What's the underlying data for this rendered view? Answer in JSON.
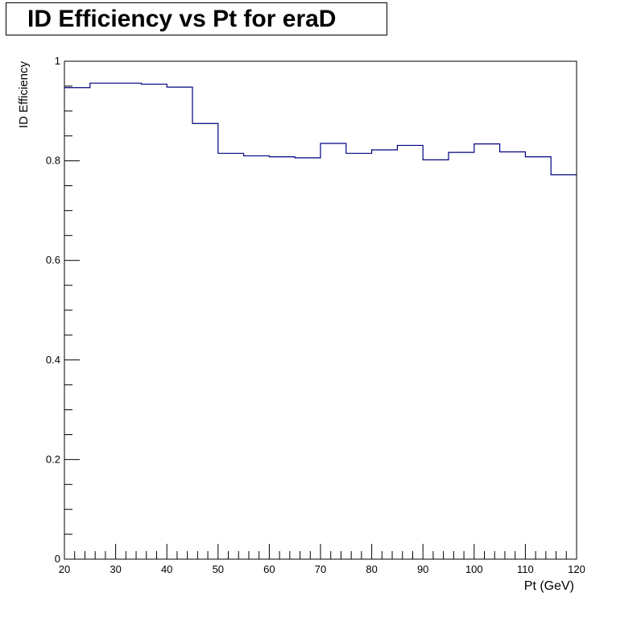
{
  "chart_data": {
    "type": "line",
    "style": "step-histogram",
    "title": "ID Efficiency vs Pt for eraD",
    "xlabel": "Pt (GeV)",
    "ylabel": "ID Efficiency",
    "xlim": [
      20,
      120
    ],
    "ylim": [
      0,
      1
    ],
    "x_ticks": [
      20,
      30,
      40,
      50,
      60,
      70,
      80,
      90,
      100,
      110,
      120
    ],
    "x_tick_labels": [
      "20",
      "30",
      "40",
      "50",
      "60",
      "70",
      "80",
      "90",
      "100",
      "110",
      "120"
    ],
    "y_ticks": [
      0,
      0.2,
      0.4,
      0.6,
      0.8,
      1
    ],
    "y_tick_labels": [
      "0",
      "0.2",
      "0.4",
      "0.6",
      "0.8",
      "1"
    ],
    "grid": false,
    "line_color": "#000080",
    "series": [
      {
        "name": "ID Efficiency",
        "bin_edges": [
          20,
          25,
          30,
          35,
          40,
          45,
          50,
          55,
          60,
          65,
          70,
          75,
          80,
          85,
          90,
          95,
          100,
          105,
          110,
          115,
          120
        ],
        "values": [
          0.947,
          0.956,
          0.956,
          0.954,
          0.948,
          0.875,
          0.815,
          0.81,
          0.808,
          0.806,
          0.835,
          0.815,
          0.822,
          0.831,
          0.802,
          0.817,
          0.834,
          0.818,
          0.808,
          0.772
        ]
      }
    ]
  }
}
